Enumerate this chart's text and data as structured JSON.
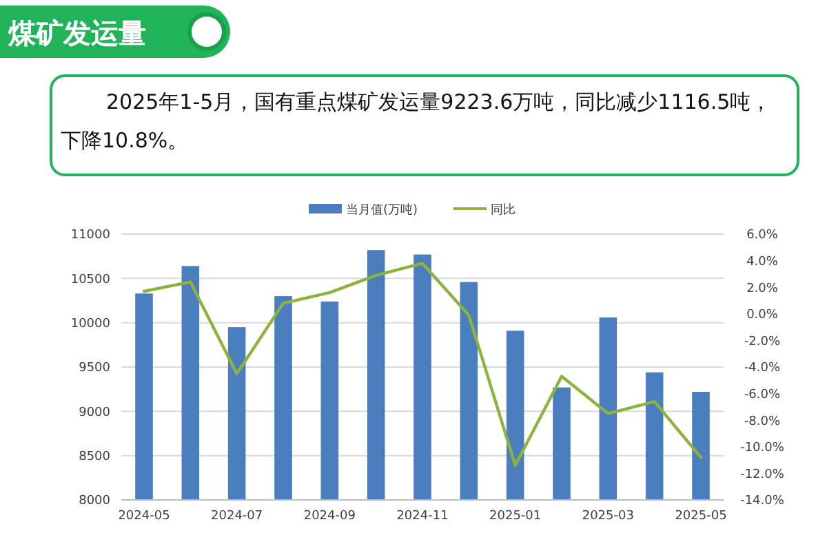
{
  "chart_data": {
    "type": "bar",
    "title": "煤矿发运量",
    "annotations": [
      "2025年1-5月，国有重点煤矿发运量9223.6万吨，同比减少1116.5吨，下降10.8%。"
    ],
    "categories": [
      "2024-05",
      null,
      "2024-07",
      null,
      "2024-09",
      null,
      "2024-11",
      null,
      "2025-01",
      null,
      "2025-03",
      null,
      "2025-05"
    ],
    "series": [
      {
        "name": "当月值(万吨)",
        "color": "#4a7ebf",
        "values": [
          10330,
          10640,
          9950,
          10300,
          10240,
          10820,
          10770,
          10460,
          9910,
          9270,
          10060,
          9440,
          9220
        ]
      },
      {
        "name": "同比",
        "type": "line",
        "axis": "y2",
        "color": "#8db33f",
        "values": [
          1.7,
          2.4,
          -4.5,
          0.8,
          1.6,
          2.9,
          3.8,
          -0.1,
          -11.4,
          -4.7,
          -7.5,
          -6.6,
          -10.8
        ]
      }
    ],
    "ylim": [
      8000,
      11000
    ],
    "yticks": [
      8000,
      8500,
      9000,
      9500,
      10000,
      10500,
      11000
    ],
    "y2lim": [
      -14,
      6
    ],
    "y2ticks": [
      {
        "value": -14,
        "label": "-14.0%"
      },
      {
        "value": -12,
        "label": "-12.0%"
      },
      {
        "value": -10,
        "label": "-10.0%"
      },
      {
        "value": -8,
        "label": "-8.0%"
      },
      {
        "value": -6,
        "label": "-6.0%"
      },
      {
        "value": -4,
        "label": "-4.0%"
      },
      {
        "value": -2,
        "label": "-2.0%"
      },
      {
        "value": 0,
        "label": "0.0%"
      },
      {
        "value": 2,
        "label": "2.0%"
      },
      {
        "value": 4,
        "label": "4.0%"
      },
      {
        "value": 6,
        "label": "6.0%"
      }
    ],
    "grid": "y",
    "legend": "top",
    "marker": "none",
    "line_style": "solid"
  }
}
